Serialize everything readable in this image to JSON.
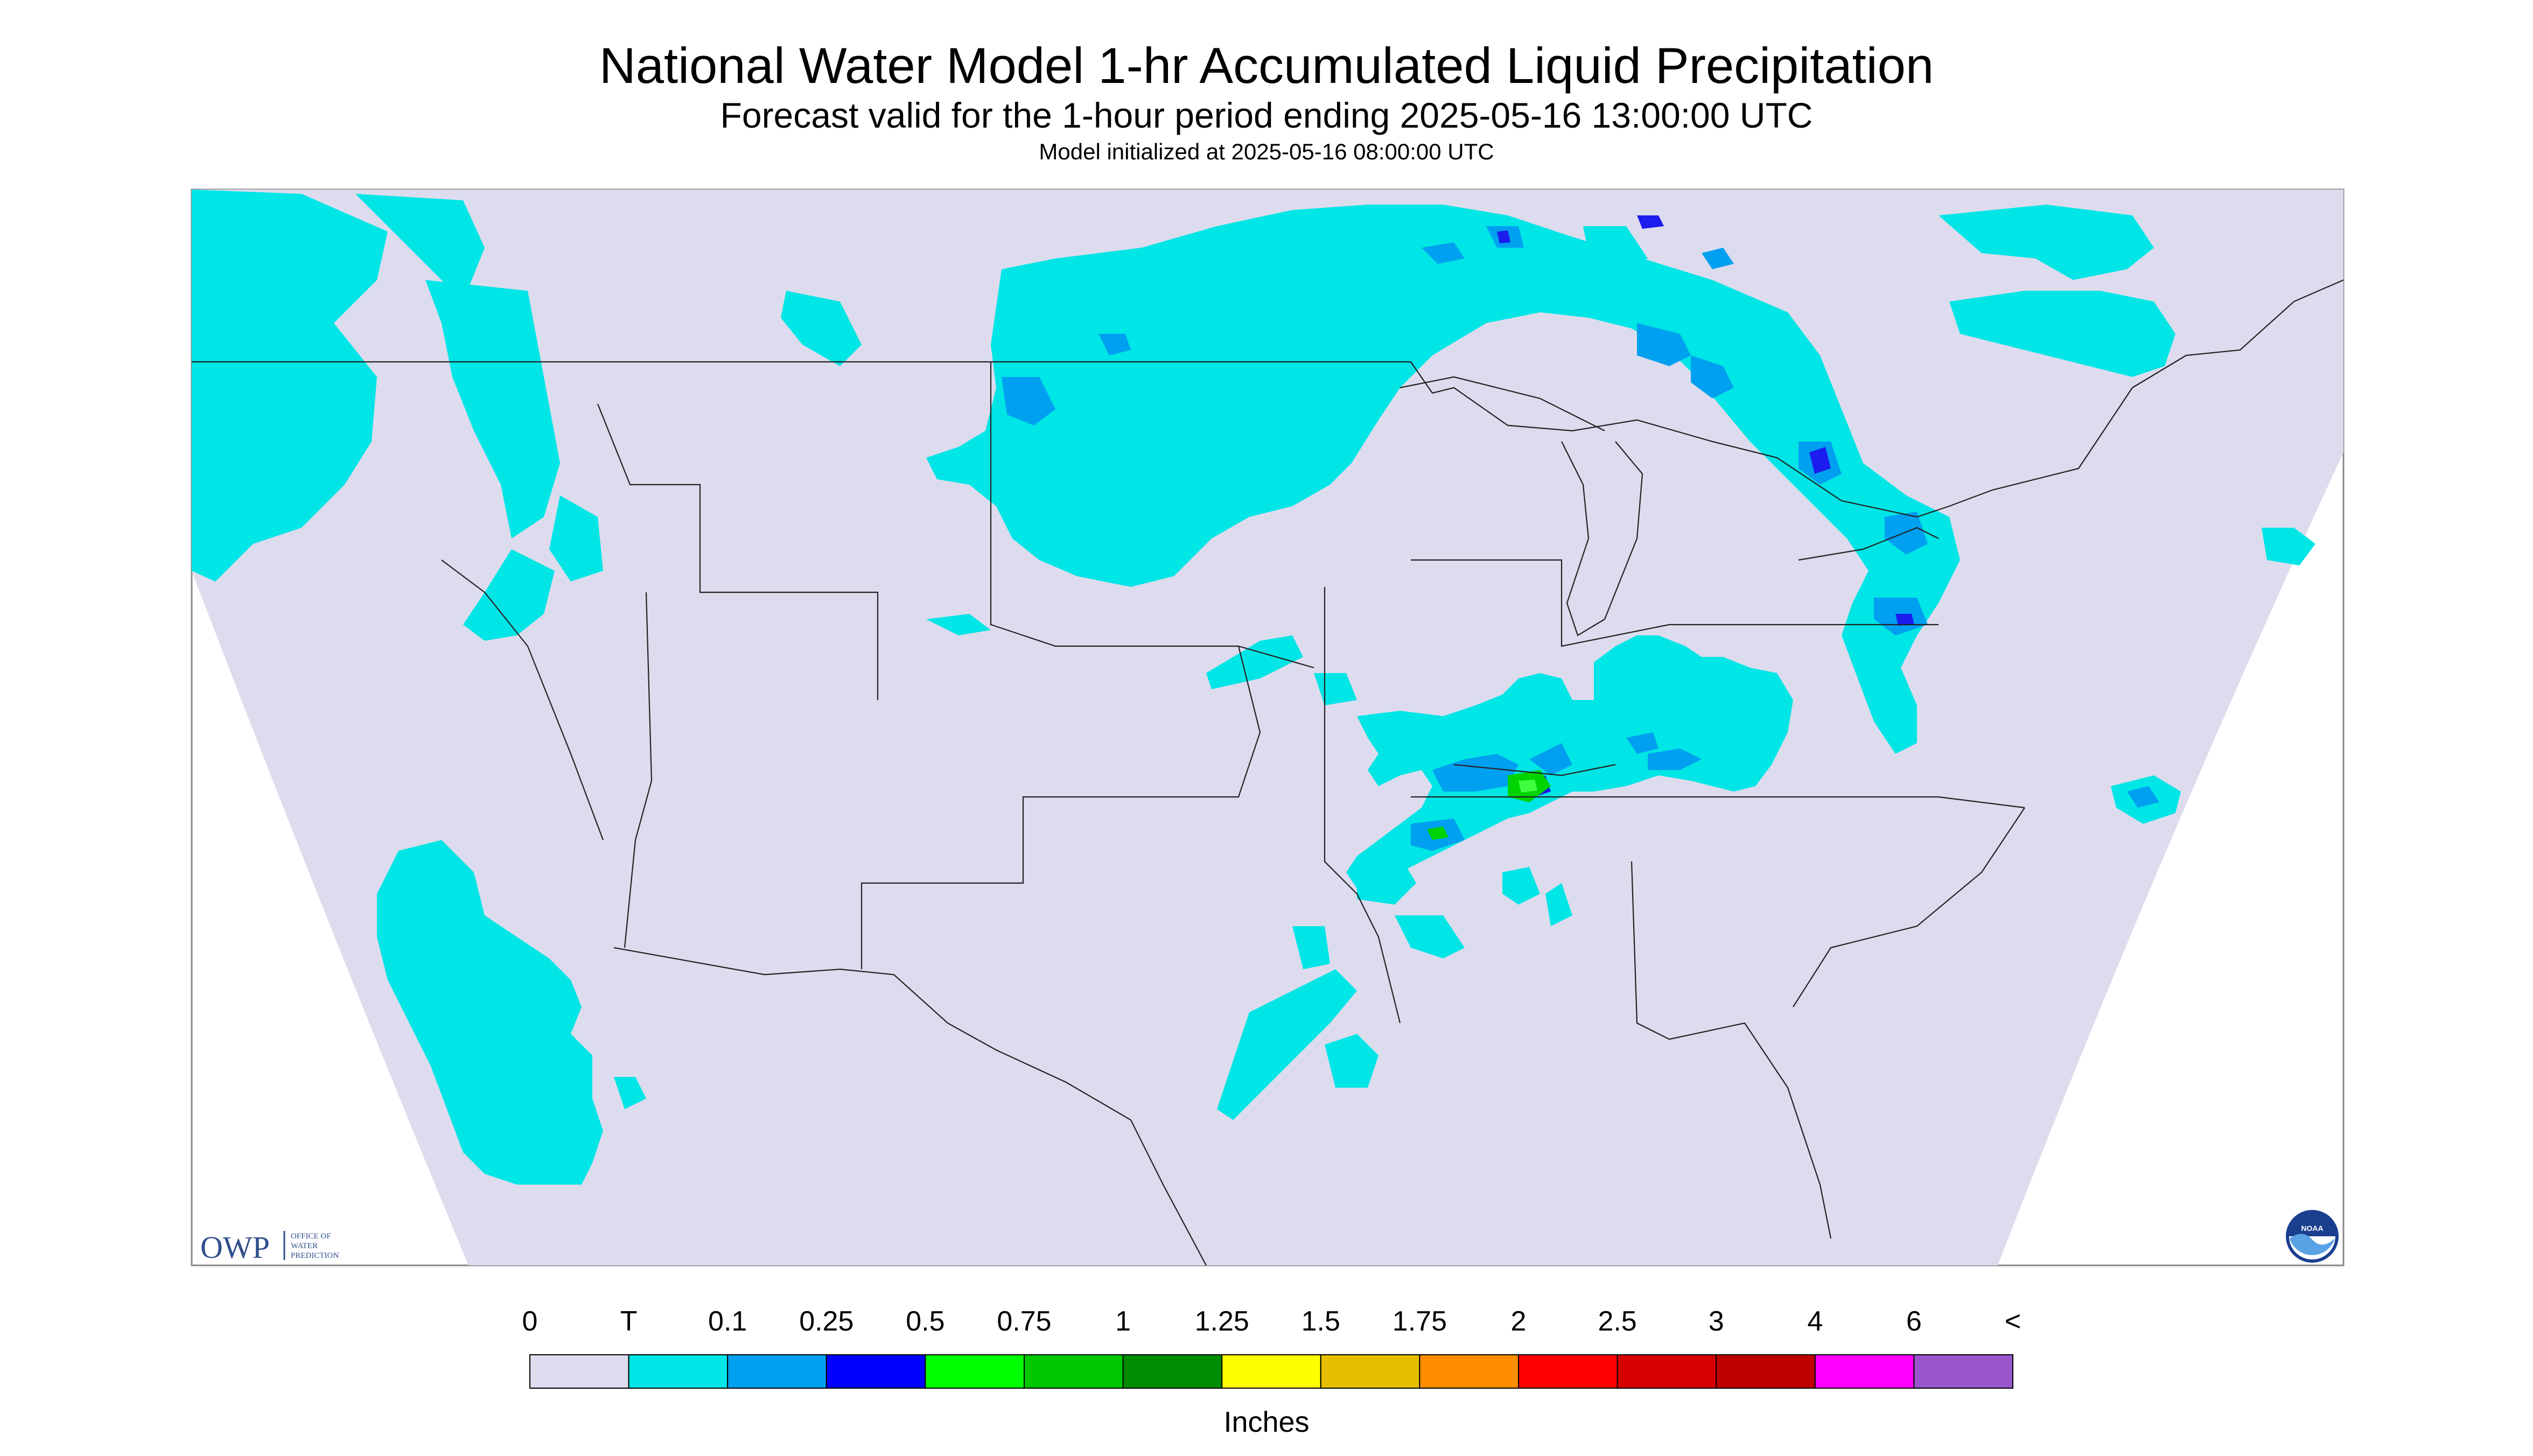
{
  "header": {
    "title": "National Water Model 1-hr Accumulated Liquid Precipitation",
    "subtitle": "Forecast valid for the 1-hour period ending 2025-05-16 13:00:00 UTC",
    "init_line": "Model initialized at 2025-05-16 08:00:00 UTC"
  },
  "logos": {
    "owp_letters": "OWP",
    "owp_line1": "OFFICE OF",
    "owp_line2": "WATER",
    "owp_line3": "PREDICTION",
    "noaa": "NOAA"
  },
  "colors": {
    "background": "#dcdcee",
    "trace": "#00e5e5",
    "light": "#00a0f0",
    "moderate": "#1c1cee",
    "heavy_green": "#00d400",
    "heavy_lime": "#40ff40"
  },
  "legend": {
    "units": "Inches",
    "labels": [
      "0",
      "T",
      "0.1",
      "0.25",
      "0.5",
      "0.75",
      "1",
      "1.25",
      "1.5",
      "1.75",
      "2",
      "2.5",
      "3",
      "4",
      "6",
      "<"
    ],
    "colors": [
      "#dcdcee",
      "#00e5e5",
      "#00a0f0",
      "#0000ff",
      "#00ff00",
      "#00c800",
      "#008c00",
      "#ffff00",
      "#e6c000",
      "#ff8c00",
      "#ff0000",
      "#d60000",
      "#c00000",
      "#ff00ff",
      "#9955cc"
    ]
  }
}
